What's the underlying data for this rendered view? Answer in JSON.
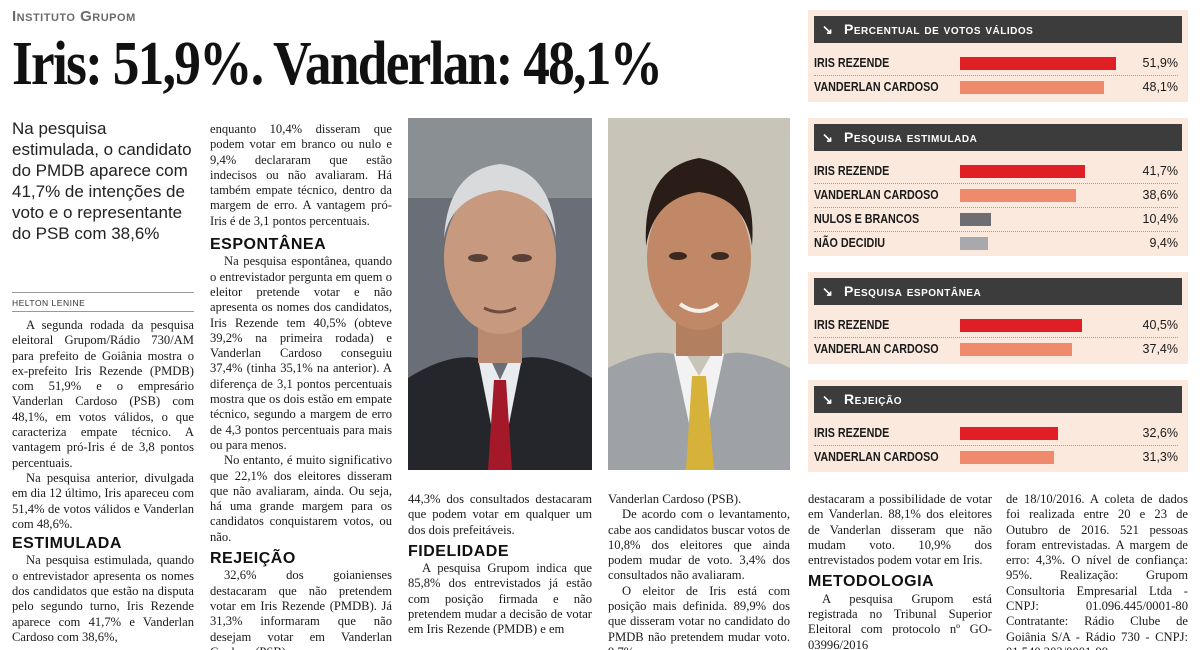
{
  "header": {
    "kicker": "Instituto Grupom",
    "headline": "Iris: 51,9%. Vanderlan: 48,1%"
  },
  "deck": "Na pesquisa estimulada, o candidato do PMDB aparece com 41,7% de intenções de voto e o representante do PSB com 38,6%",
  "byline": "HELTON LENINE",
  "article": {
    "col1": [
      "A segunda rodada da pesquisa eleitoral Grupom/Rádio 730/AM para prefeito de Goiânia mostra o ex-prefeito Iris Rezende (PMDB) com 51,9% e o empresário Vanderlan Cardoso (PSB) com 48,1%, em votos válidos, o que caracteriza empate técnico. A vantagem pró-Iris é de 3,8 pontos percentuais.",
      "Na pesquisa anterior, divulgada em dia 12 último, Iris apareceu com 51,4% de votos válidos e Vanderlan com 48,6%."
    ],
    "col1_sub": "ESTIMULADA",
    "col1_after": "Na pesquisa estimulada, quando o entrevistador apresenta os nomes dos candidatos que estão na disputa pelo segundo turno, Iris Rezende aparece com 41,7% e Vanderlan Cardoso com 38,6%,",
    "col2_intro": "enquanto 10,4% disseram que podem votar em branco ou nulo e 9,4% declararam que estão indecisos ou não avaliaram. Há também empate técnico, dentro da margem de erro. A vantagem pró-Iris é de 3,1 pontos percentuais.",
    "col2_sub1": "ESPONTÂNEA",
    "col2_p1": "Na pesquisa espontânea, quando o entrevistador pergunta em quem o eleitor pretende votar e não apresenta os nomes dos candidatos, Iris Rezende tem 40,5% (obteve 39,2% na primeira rodada) e Vanderlan Cardoso conseguiu 37,4% (tinha 35,1% na anterior). A diferença de 3,1 pontos percentuais mostra que os dois estão em empate técnico, segundo a margem de erro de 4,3 pontos percentuais para mais ou para menos.",
    "col2_p2": "No entanto, é muito significativo que 22,1% dos eleitores disseram que não avaliaram, ainda. Ou seja, há uma grande margem para os candidatos conquistarem votos, ou não.",
    "col2_sub2": "REJEIÇÃO",
    "col2_p3": "32,6% dos goianienses destacaram que não pretendem votar em Iris Rezende (PMDB). Já 31,3% informaram que não desejam votar em Vanderlan Cardoso (PSB).",
    "col3_intro": "44,3% dos consultados destacaram que podem votar em qualquer um dos dois prefeitáveis.",
    "col3_sub": "FIDELIDADE",
    "col3_p1": "A pesquisa Grupom indica que 85,8% dos entrevistados já estão com posição firmada e não pretendem mudar a decisão de votar em Iris Rezende (PMDB) e em",
    "col4_intro": "Vanderlan Cardoso (PSB).",
    "col4_p1": "De acordo com o levantamento, cabe aos candidatos buscar votos de 10,8% dos eleitores que ainda podem mudar de voto. 3,4% dos consultados não avaliaram.",
    "col4_p2": "O eleitor de Iris está com posição mais definida. 89,9% dos que disseram votar no candidato do PMDB não pretendem mudar voto. 9,7%",
    "col5_intro": "destacaram a possibilidade de votar em Vanderlan. 88,1% dos eleitores de Vanderlan disseram que não mudam voto. 10,9% dos entrevistados podem votar em Iris.",
    "col5_sub": "METODOLOGIA",
    "col5_p1": "A pesquisa Grupom está registrada no Tribunal Superior Eleitoral com protocolo nº GO-03996/2016",
    "col6_p1": "de 18/10/2016. A coleta de dados foi realizada entre 20 e 23 de Outubro de 2016. 521 pessoas foram entrevistadas. A margem de erro: 4,3%. O nível de confiança: 95%. Realização: Grupom Consultoria Empresarial Ltda - CNPJ: 01.096.445/0001-80 Contratante: Rádio Clube de Goiânia S/A - Rádio 730 - CNPJ: 01.540.202/0001-99."
  },
  "panels": [
    {
      "title": "Percentual de votos válidos",
      "rows": [
        {
          "name": "IRIS REZENDE",
          "value": 51.9,
          "label": "51,9%",
          "color": "#e01e26"
        },
        {
          "name": "VANDERLAN CARDOSO",
          "value": 48.1,
          "label": "48,1%",
          "color": "#f08a6c"
        }
      ]
    },
    {
      "title": "Pesquisa estimulada",
      "rows": [
        {
          "name": "IRIS REZENDE",
          "value": 41.7,
          "label": "41,7%",
          "color": "#e01e26"
        },
        {
          "name": "VANDERLAN CARDOSO",
          "value": 38.6,
          "label": "38,6%",
          "color": "#f08a6c"
        },
        {
          "name": "NULOS E BRANCOS",
          "value": 10.4,
          "label": "10,4%",
          "color": "#6d6e71"
        },
        {
          "name": "NÃO DECIDIU",
          "value": 9.4,
          "label": "9,4%",
          "color": "#a7a9ac"
        }
      ]
    },
    {
      "title": "Pesquisa espontânea",
      "rows": [
        {
          "name": "IRIS REZENDE",
          "value": 40.5,
          "label": "40,5%",
          "color": "#e01e26"
        },
        {
          "name": "VANDERLAN CARDOSO",
          "value": 37.4,
          "label": "37,4%",
          "color": "#f08a6c"
        }
      ]
    },
    {
      "title": "Rejeição",
      "rows": [
        {
          "name": "IRIS REZENDE",
          "value": 32.6,
          "label": "32,6%",
          "color": "#e01e26"
        },
        {
          "name": "VANDERLAN CARDOSO",
          "value": 31.3,
          "label": "31,3%",
          "color": "#f08a6c"
        }
      ]
    }
  ],
  "colors": {
    "panel_bg": "#fbe9dd",
    "panel_header": "#3c3c3c"
  }
}
